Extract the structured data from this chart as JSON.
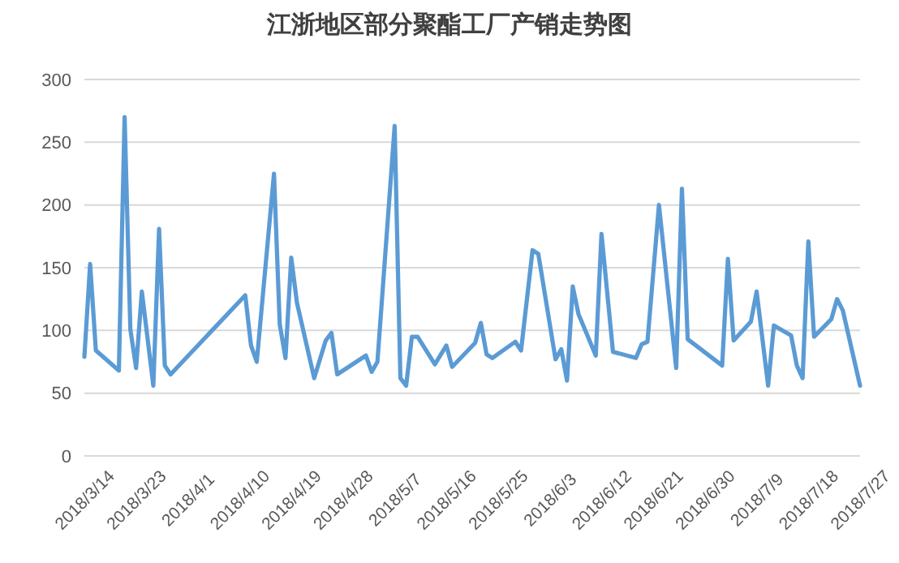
{
  "chart_data": {
    "type": "line",
    "title": "江浙地区部分聚酯工厂产销走势图",
    "x": [
      "2018-03-14",
      "2018-03-15",
      "2018-03-16",
      "2018-03-20",
      "2018-03-21",
      "2018-03-22",
      "2018-03-23",
      "2018-03-24",
      "2018-03-26",
      "2018-03-27",
      "2018-03-28",
      "2018-03-29",
      "2018-04-11",
      "2018-04-12",
      "2018-04-13",
      "2018-04-16",
      "2018-04-17",
      "2018-04-18",
      "2018-04-19",
      "2018-04-20",
      "2018-04-23",
      "2018-04-25",
      "2018-04-26",
      "2018-04-27",
      "2018-05-02",
      "2018-05-03",
      "2018-05-04",
      "2018-05-07",
      "2018-05-08",
      "2018-05-09",
      "2018-05-10",
      "2018-05-11",
      "2018-05-14",
      "2018-05-16",
      "2018-05-17",
      "2018-05-21",
      "2018-05-22",
      "2018-05-23",
      "2018-05-24",
      "2018-05-28",
      "2018-05-29",
      "2018-05-31",
      "2018-06-01",
      "2018-06-04",
      "2018-06-05",
      "2018-06-06",
      "2018-06-07",
      "2018-06-08",
      "2018-06-11",
      "2018-06-12",
      "2018-06-14",
      "2018-06-18",
      "2018-06-19",
      "2018-06-20",
      "2018-06-22",
      "2018-06-25",
      "2018-06-26",
      "2018-06-27",
      "2018-07-03",
      "2018-07-04",
      "2018-07-05",
      "2018-07-08",
      "2018-07-09",
      "2018-07-11",
      "2018-07-12",
      "2018-07-15",
      "2018-07-16",
      "2018-07-17",
      "2018-07-18",
      "2018-07-19",
      "2018-07-22",
      "2018-07-23",
      "2018-07-24",
      "2018-07-27"
    ],
    "series": [
      {
        "color": "#5b9bd5",
        "values": [
          79,
          153,
          84,
          68,
          270,
          101,
          70,
          131,
          56,
          181,
          72,
          65,
          128,
          88,
          75,
          225,
          105,
          78,
          158,
          122,
          62,
          92,
          98,
          65,
          80,
          67,
          75,
          263,
          62,
          56,
          95,
          95,
          73,
          88,
          71,
          90,
          106,
          81,
          78,
          91,
          84,
          164,
          161,
          77,
          85,
          60,
          135,
          113,
          80,
          177,
          83,
          78,
          89,
          91,
          200,
          70,
          213,
          93,
          72,
          157,
          92,
          107,
          131,
          56,
          104,
          96,
          72,
          62,
          171,
          95,
          109,
          125,
          116,
          56
        ]
      }
    ],
    "xlim": [
      "2018-03-14",
      "2018-07-27"
    ],
    "xticks": [
      {
        "value": "2018-03-14",
        "label": "2018/3/14"
      },
      {
        "value": "2018-03-23",
        "label": "2018/3/23"
      },
      {
        "value": "2018-04-01",
        "label": "2018/4/1"
      },
      {
        "value": "2018-04-10",
        "label": "2018/4/10"
      },
      {
        "value": "2018-04-19",
        "label": "2018/4/19"
      },
      {
        "value": "2018-04-28",
        "label": "2018/4/28"
      },
      {
        "value": "2018-05-07",
        "label": "2018/5/7"
      },
      {
        "value": "2018-05-16",
        "label": "2018/5/16"
      },
      {
        "value": "2018-05-25",
        "label": "2018/5/25"
      },
      {
        "value": "2018-06-03",
        "label": "2018/6/3"
      },
      {
        "value": "2018-06-12",
        "label": "2018/6/12"
      },
      {
        "value": "2018-06-21",
        "label": "2018/6/21"
      },
      {
        "value": "2018-06-30",
        "label": "2018/6/30"
      },
      {
        "value": "2018-07-09",
        "label": "2018/7/9"
      },
      {
        "value": "2018-07-18",
        "label": "2018/7/18"
      },
      {
        "value": "2018-07-27",
        "label": "2018/7/27"
      }
    ],
    "ylim": [
      0,
      300
    ],
    "yticks": [
      0,
      50,
      100,
      150,
      200,
      250,
      300
    ],
    "grid": "y",
    "marker": "none",
    "line_style": "solid"
  }
}
